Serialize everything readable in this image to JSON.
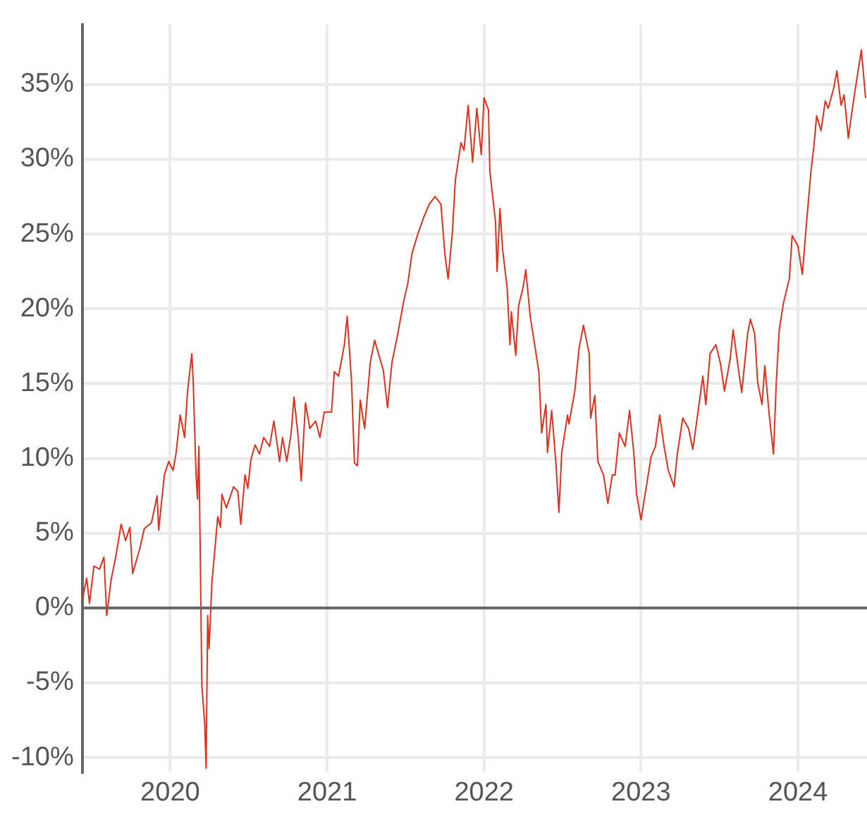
{
  "chart_data": {
    "type": "line",
    "x": [
      2019.44,
      2019.468,
      2019.486,
      2019.514,
      2019.55,
      2019.578,
      2019.596,
      2019.624,
      2019.651,
      2019.688,
      2019.716,
      2019.743,
      2019.761,
      2019.807,
      2019.835,
      2019.881,
      2019.917,
      2019.927,
      2019.963,
      2019.991,
      2020.018,
      2020.037,
      2020.064,
      2020.092,
      2020.11,
      2020.138,
      2020.147,
      2020.165,
      2020.174,
      2020.183,
      2020.193,
      2020.202,
      2020.22,
      2020.229,
      2020.239,
      2020.248,
      2020.266,
      2020.284,
      2020.303,
      2020.321,
      2020.33,
      2020.358,
      2020.404,
      2020.431,
      2020.45,
      2020.477,
      2020.495,
      2020.514,
      2020.541,
      2020.569,
      2020.596,
      2020.633,
      2020.661,
      2020.697,
      2020.716,
      2020.743,
      2020.771,
      2020.789,
      2020.817,
      2020.835,
      2020.862,
      2020.89,
      2020.927,
      2020.954,
      2020.982,
      2021.028,
      2021.046,
      2021.073,
      2021.11,
      2021.128,
      2021.156,
      2021.174,
      2021.193,
      2021.211,
      2021.239,
      2021.275,
      2021.303,
      2021.33,
      2021.358,
      2021.385,
      2021.413,
      2021.45,
      2021.486,
      2021.514,
      2021.541,
      2021.578,
      2021.615,
      2021.651,
      2021.688,
      2021.725,
      2021.752,
      2021.771,
      2021.798,
      2021.817,
      2021.853,
      2021.872,
      2021.899,
      2021.927,
      2021.954,
      2021.982,
      2022.0,
      2022.028,
      2022.037,
      2022.073,
      2022.083,
      2022.101,
      2022.119,
      2022.147,
      2022.165,
      2022.174,
      2022.202,
      2022.22,
      2022.248,
      2022.266,
      2022.294,
      2022.312,
      2022.349,
      2022.367,
      2022.394,
      2022.404,
      2022.431,
      2022.459,
      2022.477,
      2022.495,
      2022.532,
      2022.541,
      2022.578,
      2022.606,
      2022.633,
      2022.67,
      2022.679,
      2022.706,
      2022.725,
      2022.761,
      2022.789,
      2022.817,
      2022.835,
      2022.862,
      2022.899,
      2022.927,
      2022.954,
      2022.972,
      2023.0,
      2023.037,
      2023.064,
      2023.092,
      2023.119,
      2023.147,
      2023.174,
      2023.211,
      2023.229,
      2023.266,
      2023.303,
      2023.33,
      2023.358,
      2023.394,
      2023.413,
      2023.44,
      2023.477,
      2023.505,
      2023.532,
      2023.569,
      2023.587,
      2023.615,
      2023.642,
      2023.679,
      2023.697,
      2023.725,
      2023.743,
      2023.771,
      2023.789,
      2023.817,
      2023.844,
      2023.862,
      2023.881,
      2023.908,
      2023.945,
      2023.963,
      2024.0,
      2024.028,
      2024.055,
      2024.083,
      2024.101,
      2024.119,
      2024.147,
      2024.174,
      2024.193,
      2024.229,
      2024.248,
      2024.275,
      2024.294,
      2024.321,
      2024.339,
      2024.367,
      2024.404,
      2024.431
    ],
    "series": [
      {
        "color": "#e0301e",
        "values": [
          0.5,
          2.0,
          0.3,
          2.8,
          2.6,
          3.4,
          -0.5,
          1.9,
          3.3,
          5.6,
          4.5,
          5.4,
          2.3,
          4.0,
          5.3,
          5.7,
          7.5,
          5.2,
          8.9,
          9.8,
          9.2,
          10.3,
          12.9,
          11.4,
          14.4,
          17.0,
          15.1,
          8.9,
          7.3,
          10.8,
          2.6,
          -5.2,
          -7.7,
          -10.7,
          -0.5,
          -2.7,
          1.7,
          3.8,
          6.1,
          5.4,
          7.6,
          6.7,
          8.1,
          7.8,
          5.6,
          8.9,
          8.0,
          9.9,
          10.9,
          10.3,
          11.4,
          10.8,
          12.5,
          9.8,
          11.4,
          9.8,
          11.7,
          14.1,
          11.3,
          8.5,
          13.7,
          12.0,
          12.5,
          11.4,
          13.1,
          13.1,
          15.8,
          15.5,
          17.6,
          19.5,
          15.1,
          9.7,
          9.5,
          13.9,
          12.0,
          16.4,
          17.9,
          16.9,
          15.9,
          13.4,
          16.4,
          18.3,
          20.4,
          21.7,
          23.7,
          25.0,
          26.1,
          27.0,
          27.5,
          27.0,
          23.5,
          22.0,
          25.1,
          28.6,
          31.1,
          30.6,
          33.6,
          29.8,
          33.4,
          30.3,
          34.1,
          33.3,
          29.2,
          25.8,
          22.5,
          26.7,
          23.9,
          21.4,
          17.6,
          19.8,
          16.9,
          20.2,
          21.4,
          22.6,
          19.5,
          18.3,
          15.8,
          11.7,
          13.6,
          10.4,
          13.2,
          9.5,
          6.4,
          10.4,
          12.9,
          12.3,
          14.5,
          17.4,
          18.9,
          17.0,
          12.7,
          14.2,
          9.8,
          8.9,
          7.0,
          8.9,
          8.9,
          11.7,
          10.8,
          13.2,
          10.4,
          7.6,
          5.9,
          8.3,
          10.1,
          10.8,
          12.9,
          10.8,
          9.2,
          8.1,
          10.1,
          12.7,
          12.0,
          10.6,
          12.7,
          15.5,
          13.6,
          17.0,
          17.6,
          16.4,
          14.5,
          16.7,
          18.6,
          16.4,
          14.4,
          18.3,
          19.3,
          18.3,
          15.1,
          13.6,
          16.2,
          12.9,
          10.3,
          15.1,
          18.6,
          20.4,
          22.0,
          24.9,
          24.2,
          22.3,
          25.8,
          29.2,
          30.8,
          32.9,
          31.9,
          33.9,
          33.4,
          34.8,
          35.9,
          33.6,
          34.3,
          31.4,
          32.8,
          34.8,
          37.3,
          34.1
        ]
      }
    ],
    "xlim": [
      2019.44,
      2024.44
    ],
    "xticks": [
      2020,
      2021,
      2022,
      2023,
      2024
    ],
    "ylim": [
      -11,
      39
    ],
    "yticks": [
      {
        "value": -10,
        "label": "-10%"
      },
      {
        "value": -5,
        "label": "-5%"
      },
      {
        "value": 0,
        "label": "0%"
      },
      {
        "value": 5,
        "label": "5%"
      },
      {
        "value": 10,
        "label": "10%"
      },
      {
        "value": 15,
        "label": "15%"
      },
      {
        "value": 20,
        "label": "20%"
      },
      {
        "value": 25,
        "label": "25%"
      },
      {
        "value": 30,
        "label": "30%"
      },
      {
        "value": 35,
        "label": "35%"
      }
    ],
    "ref_lines": [
      {
        "axis": "y",
        "value": 0,
        "color": "#666666"
      }
    ],
    "grid": true,
    "legend": false,
    "marker": "none",
    "line_style": "solid"
  }
}
